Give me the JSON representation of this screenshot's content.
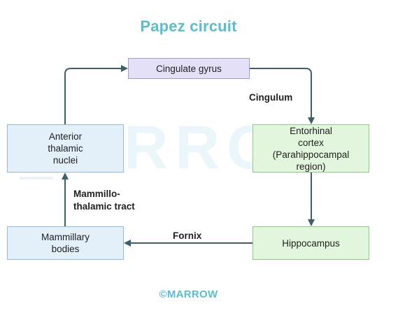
{
  "title": "Papez circuit",
  "watermark": "MARROW",
  "nodes": {
    "cingulate_gyrus": "Cingulate gyrus",
    "entorhinal_cortex": "Entorhinal\ncortex\n(Parahippocampal\nregion)",
    "hippocampus": "Hippocampus",
    "mammillary_bodies": "Mammillary\nbodies",
    "anterior_thalamic_nuclei": "Anterior\nthalamic\nnuclei"
  },
  "edges": {
    "cingulum": "Cingulum",
    "fornix": "Fornix",
    "mammillothalamic_tract": "Mammillo-\nthalamic tract"
  },
  "footer": "©MARROW",
  "colors": {
    "title": "#5bbdd0",
    "arrow": "#3d5f6b",
    "purple_box": "#e4e0f8",
    "green_box": "#e2f6dd",
    "blue_box": "#e3eff9"
  }
}
